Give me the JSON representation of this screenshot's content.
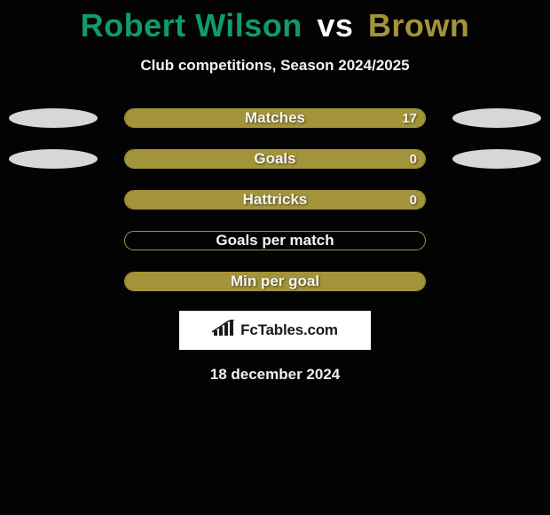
{
  "title": {
    "player1": "Robert Wilson",
    "vs": "vs",
    "player2": "Brown",
    "player1_color": "#0f9b6a",
    "player2_color": "#a3933a",
    "vs_color": "#ffffff"
  },
  "subtitle": "Club competitions, Season 2024/2025",
  "bar_color": "#a3933a",
  "ellipse_color": "#d7d7d7",
  "background_color": "#030303",
  "stats": [
    {
      "label": "Matches",
      "value": "17",
      "filled": true,
      "show_value": true,
      "show_ellipses": true
    },
    {
      "label": "Goals",
      "value": "0",
      "filled": true,
      "show_value": true,
      "show_ellipses": true
    },
    {
      "label": "Hattricks",
      "value": "0",
      "filled": true,
      "show_value": true,
      "show_ellipses": false
    },
    {
      "label": "Goals per match",
      "value": "",
      "filled": false,
      "show_value": false,
      "show_ellipses": false
    },
    {
      "label": "Min per goal",
      "value": "",
      "filled": true,
      "show_value": false,
      "show_ellipses": false
    }
  ],
  "brand": "FcTables.com",
  "date": "18 december 2024"
}
